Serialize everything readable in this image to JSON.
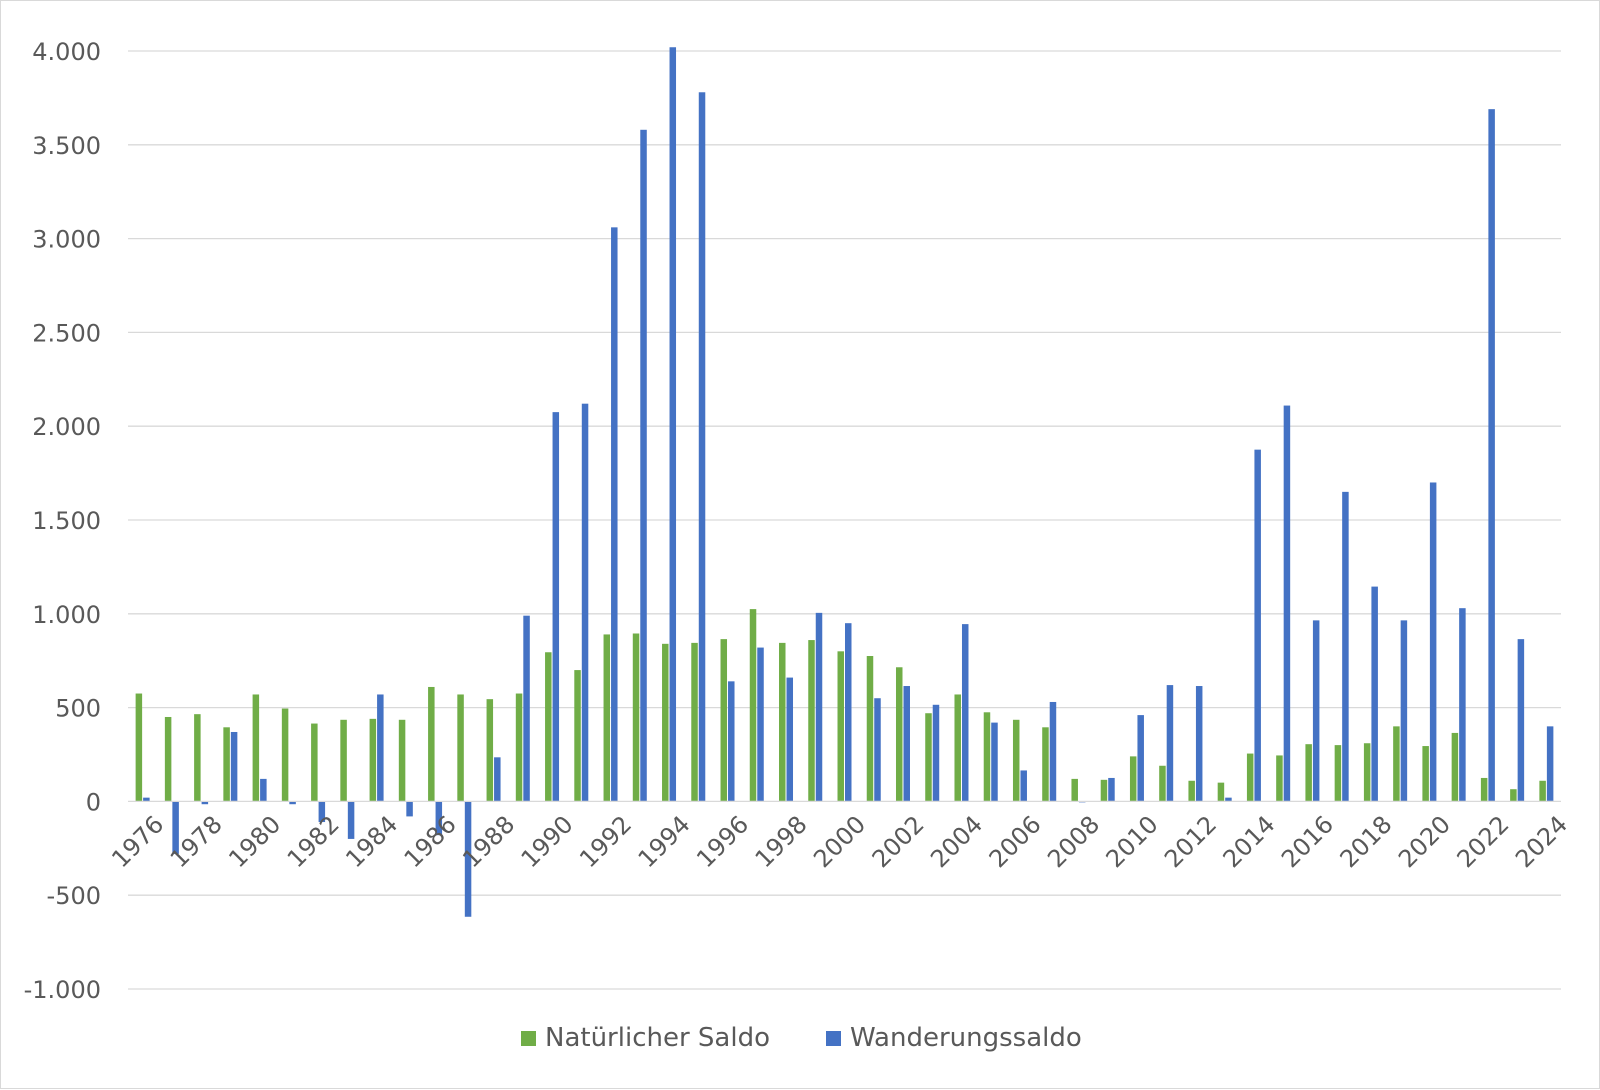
{
  "chart_data": {
    "type": "bar",
    "title": "",
    "xlabel": "",
    "ylabel": "",
    "ylim": [
      -1000,
      4000
    ],
    "yticks": [
      -1000,
      -500,
      0,
      500,
      1000,
      1500,
      2000,
      2500,
      3000,
      3500,
      4000
    ],
    "ytick_labels": [
      "-1.000",
      "-500",
      "0",
      "500",
      "1.000",
      "1.500",
      "2.000",
      "2.500",
      "3.000",
      "3.500",
      "4.000"
    ],
    "grid": true,
    "legend_position": "bottom",
    "categories": [
      "1976",
      "1977",
      "1978",
      "1979",
      "1980",
      "1981",
      "1982",
      "1983",
      "1984",
      "1985",
      "1986",
      "1987",
      "1988",
      "1989",
      "1990",
      "1991",
      "1992",
      "1993",
      "1994",
      "1995",
      "1996",
      "1997",
      "1998",
      "1999",
      "2000",
      "2001",
      "2002",
      "2003",
      "2004",
      "2005",
      "2006",
      "2007",
      "2008",
      "2009",
      "2010",
      "2011",
      "2012",
      "2013",
      "2014",
      "2015",
      "2016",
      "2017",
      "2018",
      "2019",
      "2020",
      "2021",
      "2022",
      "2023",
      "2024"
    ],
    "xtick_labels": [
      "1976",
      "1978",
      "1980",
      "1982",
      "1984",
      "1986",
      "1988",
      "1990",
      "1992",
      "1994",
      "1996",
      "1998",
      "2000",
      "2002",
      "2004",
      "2006",
      "2008",
      "2010",
      "2012",
      "2014",
      "2016",
      "2018",
      "2020",
      "2022",
      "2024"
    ],
    "series": [
      {
        "name": "Natürlicher Saldo",
        "color": "#70ad47",
        "values": [
          575,
          450,
          465,
          395,
          570,
          495,
          415,
          435,
          440,
          435,
          610,
          570,
          545,
          575,
          795,
          700,
          890,
          895,
          840,
          845,
          865,
          1025,
          845,
          860,
          800,
          775,
          715,
          470,
          570,
          475,
          435,
          395,
          120,
          115,
          240,
          190,
          110,
          100,
          255,
          245,
          305,
          300,
          310,
          400,
          295,
          365,
          125,
          65,
          110
        ]
      },
      {
        "name": "Wanderungssaldo",
        "color": "#4472c4",
        "values": [
          20,
          -280,
          -15,
          370,
          120,
          -15,
          -110,
          -200,
          570,
          -80,
          -180,
          -615,
          235,
          990,
          2075,
          2120,
          3060,
          3580,
          4020,
          3780,
          640,
          820,
          660,
          1005,
          950,
          550,
          615,
          515,
          945,
          420,
          165,
          530,
          -5,
          125,
          460,
          620,
          615,
          20,
          1875,
          2110,
          965,
          1650,
          1145,
          965,
          1700,
          1030,
          3690,
          865,
          400
        ]
      }
    ]
  }
}
